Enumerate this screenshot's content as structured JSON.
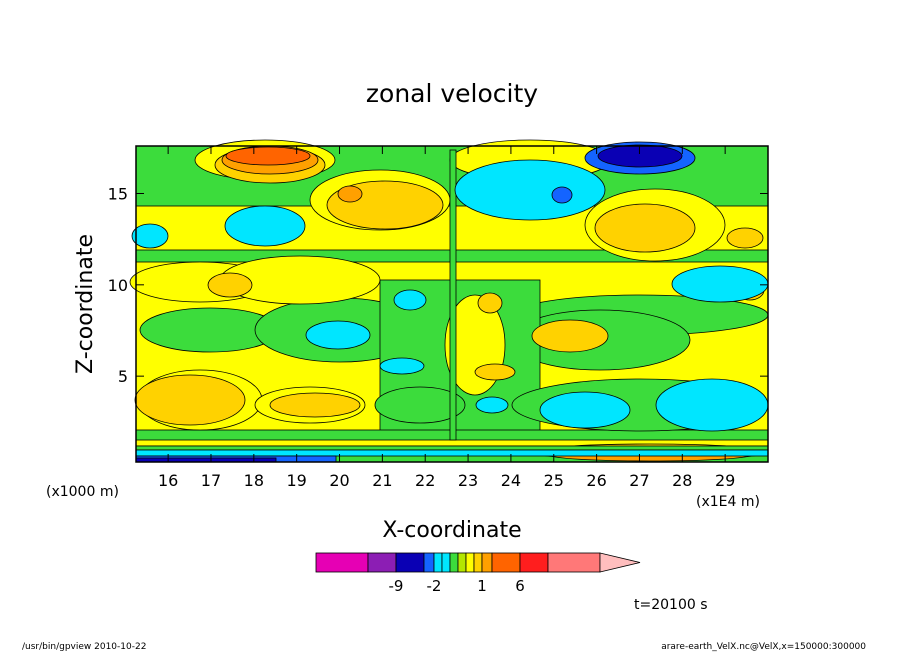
{
  "chart_data": {
    "type": "heatmap",
    "title": "zonal velocity",
    "xlabel": "X-coordinate",
    "ylabel": "Z-coordinate",
    "x_unit_left": "(x1000 m)",
    "x_unit_right": "(x1E4 m)",
    "x_tick_labels": [
      "16",
      "17",
      "18",
      "19",
      "20",
      "21",
      "22",
      "23",
      "24",
      "25",
      "26",
      "27",
      "28",
      "29"
    ],
    "y_tick_labels": [
      "5",
      "10",
      "15"
    ],
    "xlim": [
      15.25,
      30.0
    ],
    "ylim": [
      0.3,
      17.6
    ],
    "colorbar_labels": [
      "-9",
      "-2",
      "1",
      "6"
    ],
    "time_label": "t=20100 s",
    "colorbar_colors": [
      "#e600b4",
      "#8c1eb4",
      "#0a00b4",
      "#1464ff",
      "#00e6ff",
      "#00e6ff",
      "#3cdc3c",
      "#b4e600",
      "#ffff00",
      "#ffd200",
      "#ffa000",
      "#ff6400",
      "#ff1e1e",
      "#ff7878",
      "#ffbebe"
    ],
    "level_colors": {
      "m9": "#0a00b4",
      "m5": "#1464ff",
      "m2": "#00e6ff",
      "m1": "#3cdc3c",
      "p1": "#ffff00",
      "p2": "#ffd200",
      "p4": "#ffa000",
      "p6": "#ff6400"
    }
  },
  "footer": {
    "left": "/usr/bin/gpview  2010-10-22",
    "right": "arare-earth_VelX.nc@VelX,x=150000:300000"
  }
}
